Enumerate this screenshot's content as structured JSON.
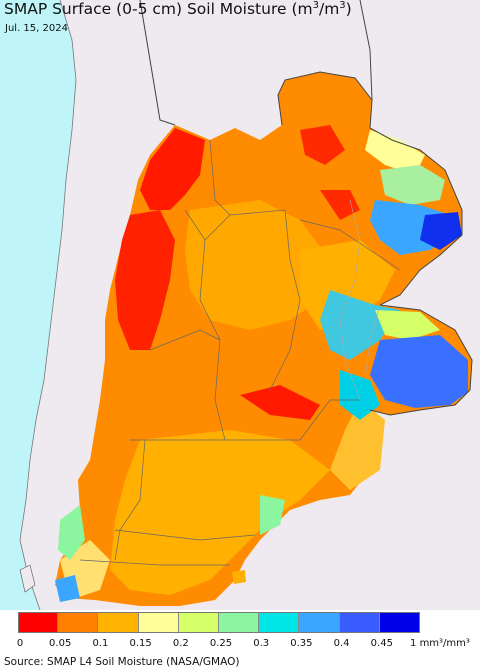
{
  "title": {
    "main": "SMAP Surface (0-5 cm) Soil Moisture (m",
    "sup1": "3",
    "mid": "/m",
    "sup2": "3",
    "end": ")"
  },
  "date": "Jul. 15, 2024",
  "legend": {
    "colors": [
      "#ff0000",
      "#ff7f00",
      "#ffb300",
      "#ffff9a",
      "#d4ff66",
      "#8cf5a0",
      "#00e6e6",
      "#3aa6ff",
      "#3a5cff",
      "#0000e6"
    ],
    "ticks": [
      "0",
      "0.05",
      "0.1",
      "0.15",
      "0.2",
      "0.25",
      "0.3",
      "0.35",
      "0.4",
      "0.45"
    ],
    "last_tick": "1",
    "unit": "mm³/mm³"
  },
  "source": "Source: SMAP L4 Soil Moisture (NASA/GMAO)",
  "map_colors": {
    "ocean": "#bff5f8",
    "outside_land": "#efeaef",
    "border": "#666666"
  }
}
